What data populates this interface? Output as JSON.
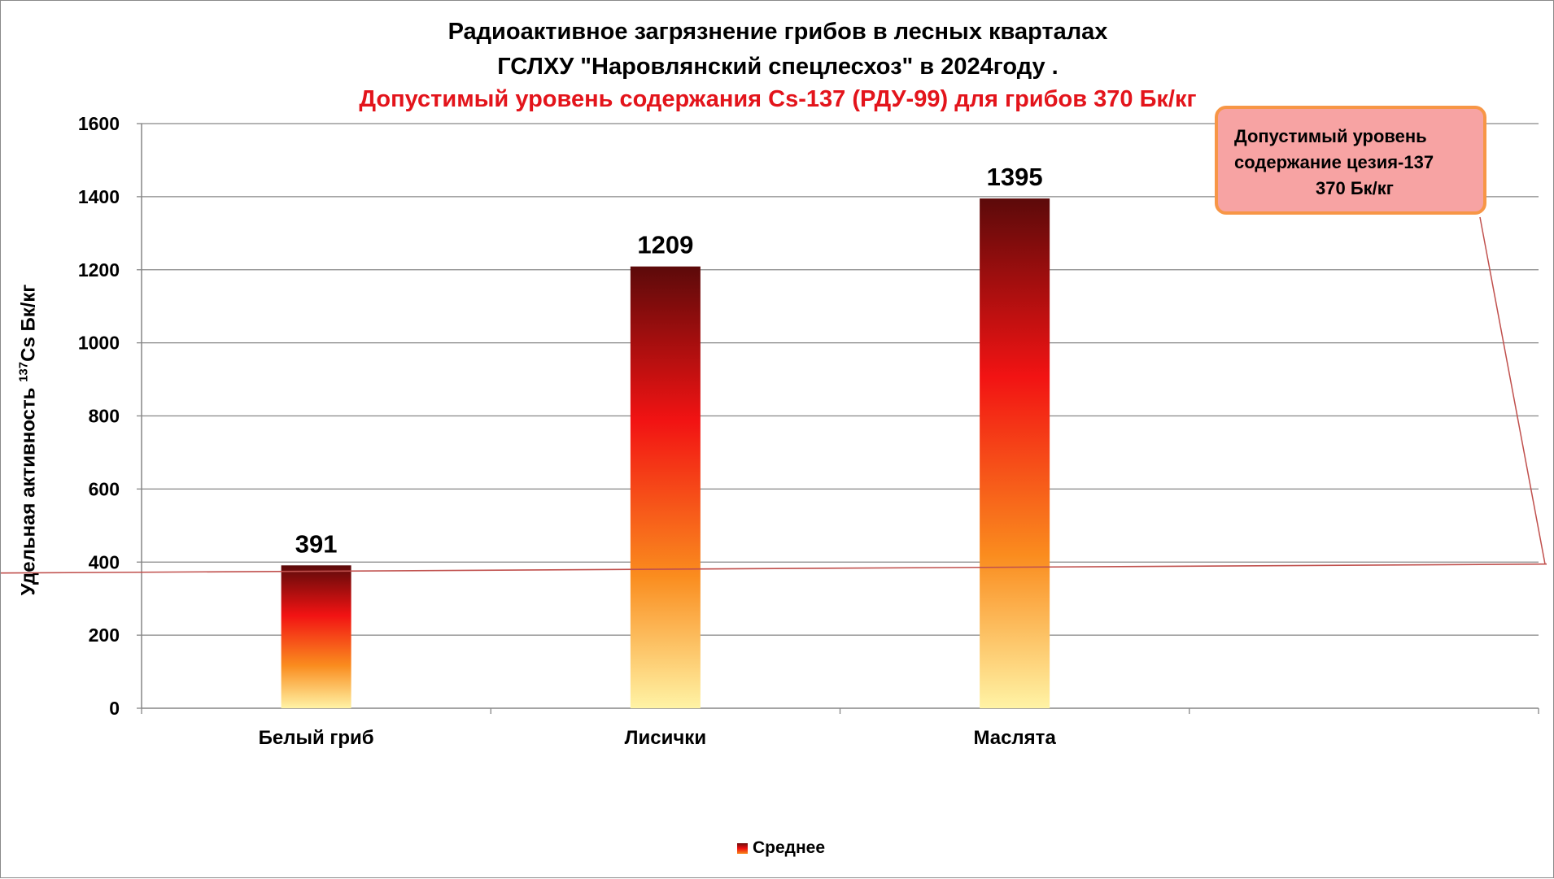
{
  "chart_data": {
    "type": "bar",
    "title_lines": [
      "Радиоактивное загрязнение грибов в лесных кварталах",
      "ГСЛХУ \"Наровлянский спецлесхоз\" в 2024году .",
      "Допустимый уровень содержания Cs-137 (РДУ-99) для грибов 370 Бк/кг"
    ],
    "ylabel_prefix": "Удельная активность ",
    "ylabel_sup": "137",
    "ylabel_suffix": "Cs Бк/кг",
    "categories": [
      "Белый гриб",
      "Лисички",
      "Маслята"
    ],
    "series": [
      {
        "name": "Среднее",
        "values": [
          391,
          1209,
          1395
        ]
      }
    ],
    "data_labels": [
      "391",
      "1209",
      "1395"
    ],
    "ylim": [
      0,
      1600
    ],
    "yticks": [
      0,
      200,
      400,
      600,
      800,
      1000,
      1200,
      1400,
      1600
    ],
    "category_slots": 4,
    "grid": true,
    "legend_position": "bottom",
    "reference_line": {
      "value": 370
    },
    "callout_lines": [
      "Допустимый уровень",
      "содержание цезия-137",
      "370 Бк/кг"
    ],
    "colors": {
      "bar_top": "#5c0a0a",
      "bar_mid": "#f21313",
      "bar_orange": "#fa8c1e",
      "bar_bottom": "#fff3a5",
      "reference_line": "#c0504d",
      "callout_fill": "#f7a3a3",
      "callout_border": "#f79646",
      "subtitle": "#e3141b",
      "grid": "#868686"
    }
  }
}
